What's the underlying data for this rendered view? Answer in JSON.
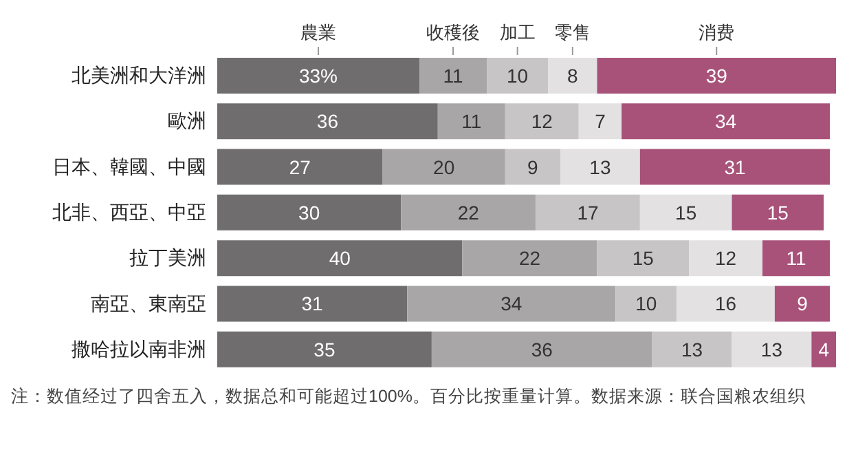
{
  "chart_data": {
    "type": "bar",
    "orientation": "horizontal",
    "stacked": true,
    "categories": [
      "北美洲和大洋洲",
      "歐洲",
      "日本、韓國、中國",
      "北非、西亞、中亞",
      "拉丁美洲",
      "南亞、東南亞",
      "撒哈拉以南非洲"
    ],
    "series": [
      {
        "name": "農業",
        "color": "#6f6d6e",
        "values": [
          33,
          36,
          27,
          30,
          40,
          31,
          35
        ],
        "value_labels": [
          "33%",
          "36",
          "27",
          "30",
          "40",
          "31",
          "35"
        ]
      },
      {
        "name": "收穫後",
        "color": "#a9a6a7",
        "values": [
          11,
          11,
          20,
          22,
          22,
          34,
          36
        ]
      },
      {
        "name": "加工",
        "color": "#c8c5c6",
        "values": [
          10,
          12,
          9,
          17,
          15,
          10,
          13
        ]
      },
      {
        "name": "零售",
        "color": "#e3e1e2",
        "values": [
          8,
          7,
          13,
          15,
          12,
          16,
          13
        ]
      },
      {
        "name": "消费",
        "color": "#a8527a",
        "values": [
          39,
          34,
          31,
          15,
          11,
          9,
          4
        ]
      }
    ],
    "xlim": [
      0,
      101
    ],
    "tick_labels": "y",
    "data_labels": true,
    "grid": false,
    "annotations": [
      "注：数值经过了四舍五入，数据总和可能超过100%。百分比按重量计算。数据来源：联合国粮农组织"
    ]
  }
}
